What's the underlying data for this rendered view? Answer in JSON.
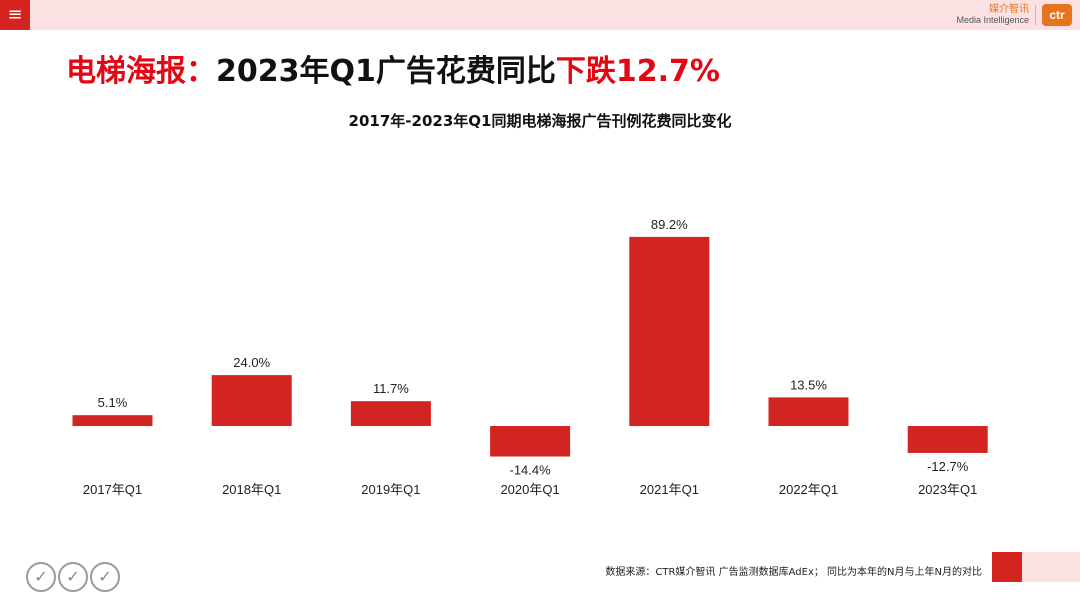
{
  "header": {
    "menu_icon": "≡",
    "brand_cn": "媒介智讯",
    "brand_en": "Media Intelligence",
    "brand_logo": "ctr",
    "accent": "#d32420",
    "brand_color": "#e8731f"
  },
  "headline": {
    "part1": "电梯海报：",
    "part2": "2023年Q1广告花费同比",
    "part3": "下跌12.7%"
  },
  "chart_data": {
    "type": "bar",
    "title": "2017年-2023年Q1同期电梯海报广告刊例花费同比变化",
    "categories": [
      "2017年Q1",
      "2018年Q1",
      "2019年Q1",
      "2020年Q1",
      "2021年Q1",
      "2022年Q1",
      "2023年Q1"
    ],
    "values": [
      5.1,
      24.0,
      11.7,
      -14.4,
      89.2,
      13.5,
      -12.7
    ],
    "value_labels": [
      "5.1%",
      "24.0%",
      "11.7%",
      "-14.4%",
      "89.2%",
      "13.5%",
      "-12.7%"
    ],
    "unit": "%",
    "xlabel": "",
    "ylabel": "",
    "grid": false,
    "bar_color": "#d22420"
  },
  "footer": {
    "source": "数据来源：CTR媒介智讯 广告监测数据库AdEx；  同比为本年的N月与上年N月的对比",
    "cert_icon": "✓"
  }
}
